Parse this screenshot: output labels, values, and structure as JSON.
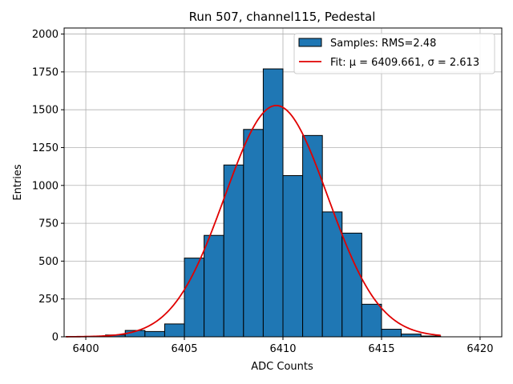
{
  "chart_data": {
    "type": "bar",
    "title": "Run 507, channel115, Pedestal",
    "xlabel": "ADC Counts",
    "ylabel": "Entries",
    "xlim": [
      6398.9,
      6421.1
    ],
    "ylim": [
      0,
      2040
    ],
    "grid": true,
    "legend_position": "top-right",
    "x_ticks": [
      6400,
      6405,
      6410,
      6415,
      6420
    ],
    "y_ticks": [
      0,
      250,
      500,
      750,
      1000,
      1250,
      1500,
      1750,
      2000
    ],
    "histogram": {
      "name": "Samples: RMS=2.48",
      "bin_width": 1,
      "bin_starts": [
        6399,
        6400,
        6401,
        6402,
        6403,
        6404,
        6405,
        6406,
        6407,
        6408,
        6409,
        6410,
        6411,
        6412,
        6413,
        6414,
        6415,
        6416,
        6417
      ],
      "values": [
        2,
        3,
        12,
        42,
        35,
        85,
        520,
        670,
        1135,
        1370,
        1770,
        1065,
        1330,
        825,
        685,
        215,
        50,
        18,
        5
      ],
      "color": "#1f77b4",
      "edge_color": "#000000"
    },
    "fit": {
      "name": "Fit: μ = 6409.661, σ = 2.613",
      "mu": 6409.661,
      "sigma": 2.613,
      "amplitude": 1528,
      "x_range": [
        6399,
        6418
      ],
      "color": "#e00000"
    }
  }
}
